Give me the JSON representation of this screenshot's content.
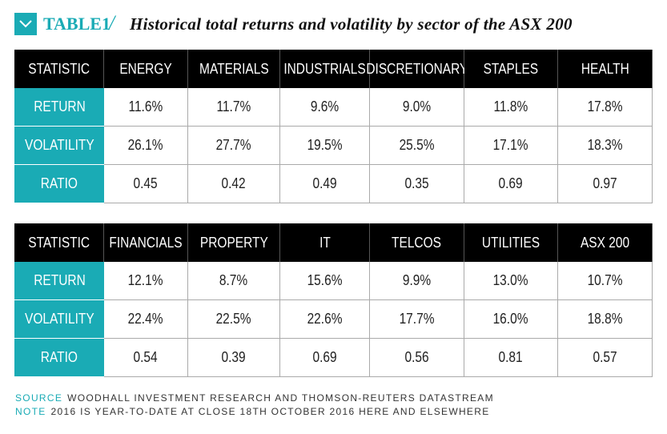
{
  "header": {
    "label": "TABLE1",
    "separator": "/",
    "title": "Historical total returns and volatility by sector of the ASX 200"
  },
  "tables": [
    {
      "columns": [
        "STATISTIC",
        "ENERGY",
        "MATERIALS",
        "INDUSTRIALS",
        "DISCRETIONARY",
        "STAPLES",
        "HEALTH"
      ],
      "rows": [
        {
          "label": "RETURN",
          "cells": [
            "11.6%",
            "11.7%",
            "9.6%",
            "9.0%",
            "11.8%",
            "17.8%"
          ]
        },
        {
          "label": "VOLATILITY",
          "cells": [
            "26.1%",
            "27.7%",
            "19.5%",
            "25.5%",
            "17.1%",
            "18.3%"
          ]
        },
        {
          "label": "RATIO",
          "cells": [
            "0.45",
            "0.42",
            "0.49",
            "0.35",
            "0.69",
            "0.97"
          ]
        }
      ]
    },
    {
      "columns": [
        "STATISTIC",
        "FINANCIALS",
        "PROPERTY",
        "IT",
        "TELCOS",
        "UTILITIES",
        "ASX 200"
      ],
      "rows": [
        {
          "label": "RETURN",
          "cells": [
            "12.1%",
            "8.7%",
            "15.6%",
            "9.9%",
            "13.0%",
            "10.7%"
          ]
        },
        {
          "label": "VOLATILITY",
          "cells": [
            "22.4%",
            "22.5%",
            "22.6%",
            "17.7%",
            "16.0%",
            "18.8%"
          ]
        },
        {
          "label": "RATIO",
          "cells": [
            "0.54",
            "0.39",
            "0.69",
            "0.56",
            "0.81",
            "0.57"
          ]
        }
      ]
    }
  ],
  "footer": [
    {
      "label": "SOURCE",
      "text": "WOODHALL INVESTMENT RESEARCH AND THOMSON-REUTERS DATASTREAM"
    },
    {
      "label": "NOTE",
      "text": "2016 IS YEAR-TO-DATE AT CLOSE 18TH OCTOBER 2016 HERE AND ELSEWHERE"
    }
  ]
}
